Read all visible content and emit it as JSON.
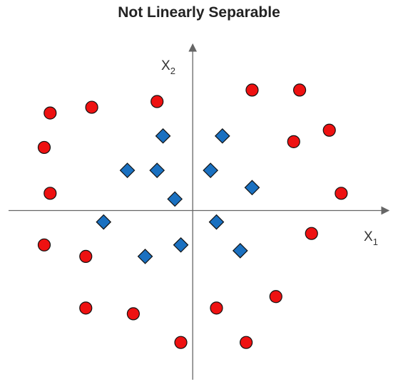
{
  "chart_data": {
    "type": "scatter",
    "title": "Not Linearly Separable",
    "xlabel": "X",
    "xlabel_sub": "1",
    "ylabel": "X",
    "ylabel_sub": "2",
    "xlim": [
      -31,
      33
    ],
    "ylim": [
      -29.5,
      29
    ],
    "grid": false,
    "colors": {
      "circle": "#ee1111",
      "diamond": "#1a70c0",
      "stroke": "#111111",
      "axis": "#666666"
    },
    "series": [
      {
        "marker": "circle",
        "points": [
          [
            -24,
            17
          ],
          [
            -17,
            18
          ],
          [
            -6,
            19
          ],
          [
            10,
            21
          ],
          [
            18,
            21
          ],
          [
            -25,
            11
          ],
          [
            -24,
            3
          ],
          [
            17,
            12
          ],
          [
            23,
            14
          ],
          [
            25,
            3
          ],
          [
            -25,
            -6
          ],
          [
            -18,
            -8
          ],
          [
            20,
            -4
          ],
          [
            -18,
            -17
          ],
          [
            -10,
            -18
          ],
          [
            4,
            -17
          ],
          [
            14,
            -15
          ],
          [
            -2,
            -23
          ],
          [
            9,
            -23
          ]
        ]
      },
      {
        "marker": "diamond",
        "points": [
          [
            -5,
            13
          ],
          [
            5,
            13
          ],
          [
            -11,
            7
          ],
          [
            -6,
            7
          ],
          [
            3,
            7
          ],
          [
            10,
            4
          ],
          [
            -3,
            2
          ],
          [
            -15,
            -2
          ],
          [
            4,
            -2
          ],
          [
            -2,
            -6
          ],
          [
            -8,
            -8
          ],
          [
            8,
            -7
          ]
        ]
      }
    ]
  }
}
